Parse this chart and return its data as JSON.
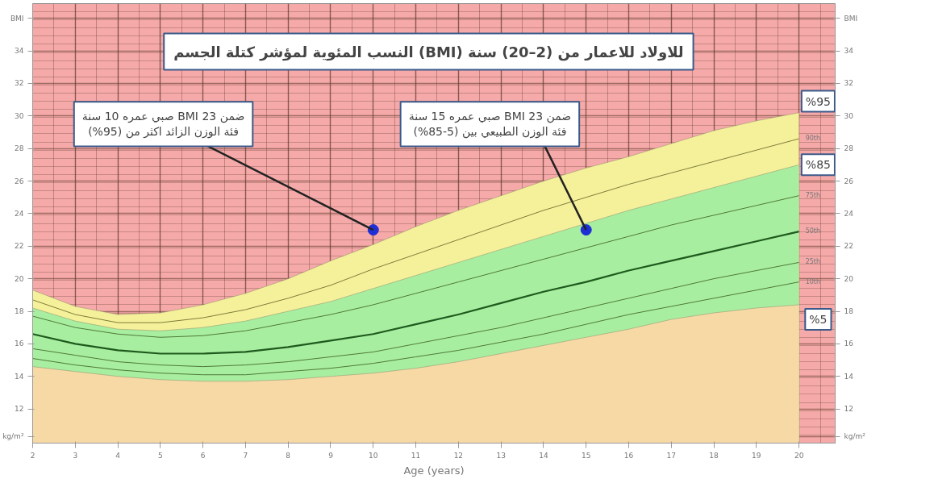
{
  "chart_data": {
    "type": "line",
    "title": "النسب المئوية لمؤشر كتلة الجسم (BMI) للاولاد للاعمار من (2–20) سنة",
    "xlabel": "Age (years)",
    "x": [
      2,
      3,
      4,
      5,
      6,
      7,
      8,
      9,
      10,
      11,
      12,
      13,
      14,
      15,
      16,
      17,
      18,
      19,
      20
    ],
    "series": [
      {
        "type": "area",
        "color": "#f5f09a",
        "values": [
          19.3,
          18.3,
          17.8,
          17.9,
          18.4,
          19.1,
          20.0,
          21.1,
          22.1,
          23.2,
          24.2,
          25.1,
          26.0,
          26.8,
          27.5,
          28.3,
          29.1,
          29.7,
          30.2
        ]
      },
      {
        "type": "area",
        "color": "#a8eea0",
        "values": [
          18.2,
          17.4,
          16.9,
          16.8,
          17.0,
          17.4,
          18.0,
          18.6,
          19.4,
          20.2,
          21.0,
          21.8,
          22.6,
          23.4,
          24.2,
          24.9,
          25.6,
          26.3,
          27.0
        ]
      },
      {
        "type": "area",
        "color": "#f7d9a6",
        "values": [
          14.6,
          14.3,
          14.0,
          13.8,
          13.7,
          13.7,
          13.8,
          14.0,
          14.2,
          14.5,
          14.9,
          15.4,
          15.9,
          16.4,
          16.9,
          17.5,
          17.9,
          18.2,
          18.4
        ]
      },
      {
        "name": "90th",
        "color": "#7d7d3a",
        "values": [
          18.7,
          17.8,
          17.3,
          17.3,
          17.6,
          18.1,
          18.8,
          19.6,
          20.6,
          21.5,
          22.4,
          23.3,
          24.2,
          25.0,
          25.8,
          26.5,
          27.2,
          27.9,
          28.6
        ]
      },
      {
        "name": "75th",
        "color": "#4f7a3a",
        "values": [
          17.7,
          17.0,
          16.6,
          16.4,
          16.5,
          16.8,
          17.3,
          17.8,
          18.4,
          19.1,
          19.8,
          20.5,
          21.2,
          21.9,
          22.6,
          23.3,
          23.9,
          24.5,
          25.1
        ]
      },
      {
        "name": "50th",
        "color": "#1e5a1e",
        "values": [
          16.6,
          16.0,
          15.6,
          15.4,
          15.4,
          15.5,
          15.8,
          16.2,
          16.6,
          17.2,
          17.8,
          18.5,
          19.2,
          19.8,
          20.5,
          21.1,
          21.7,
          22.3,
          22.9
        ]
      },
      {
        "name": "25th",
        "color": "#4f7a3a",
        "values": [
          15.7,
          15.3,
          14.9,
          14.7,
          14.6,
          14.7,
          14.9,
          15.2,
          15.5,
          16.0,
          16.5,
          17.0,
          17.6,
          18.2,
          18.8,
          19.4,
          20.0,
          20.5,
          21.0
        ]
      },
      {
        "name": "10th",
        "color": "#4f7a3a",
        "values": [
          15.1,
          14.7,
          14.4,
          14.2,
          14.1,
          14.1,
          14.3,
          14.5,
          14.8,
          15.2,
          15.6,
          16.1,
          16.6,
          17.2,
          17.8,
          18.3,
          18.8,
          19.3,
          19.8
        ]
      },
      {
        "type": "scatter",
        "color": "#1f2fd6",
        "marker": "circle",
        "x": [
          10,
          15
        ],
        "values": [
          23,
          23
        ]
      }
    ],
    "annotations": [
      {
        "text": "صبي عمره 10 سنة BMI 23 ضمن\nفئة الوزن الزائد اكثر من (95%)",
        "x": 10,
        "y": 23
      },
      {
        "text": "صبي عمره 15 سنة BMI 23 ضمن\nفئة الوزن الطبيعي بين (5-85%)",
        "x": 15,
        "y": 23
      },
      "%95",
      "%85",
      "%5"
    ],
    "xlim": [
      2,
      20.85
    ],
    "xticks": [
      2,
      3,
      4,
      5,
      6,
      7,
      8,
      9,
      10,
      11,
      12,
      13,
      14,
      15,
      16,
      17,
      18,
      19,
      20
    ],
    "ylim": [
      9.9,
      36.9
    ],
    "yticks": [
      {
        "value": 10.3,
        "label": "kg/m²"
      },
      12,
      14,
      16,
      18,
      20,
      22,
      24,
      26,
      28,
      30,
      32,
      34,
      {
        "value": 36,
        "label": "BMI"
      }
    ],
    "y2lim": [
      9.9,
      36.9
    ],
    "y2ticks": [
      {
        "value": 10.3,
        "label": "kg/m²"
      },
      12,
      14,
      16,
      18,
      20,
      22,
      24,
      26,
      28,
      30,
      32,
      34,
      {
        "value": 36,
        "label": "BMI"
      }
    ],
    "grid": true,
    "marker": "none",
    "line_style": "solid"
  }
}
